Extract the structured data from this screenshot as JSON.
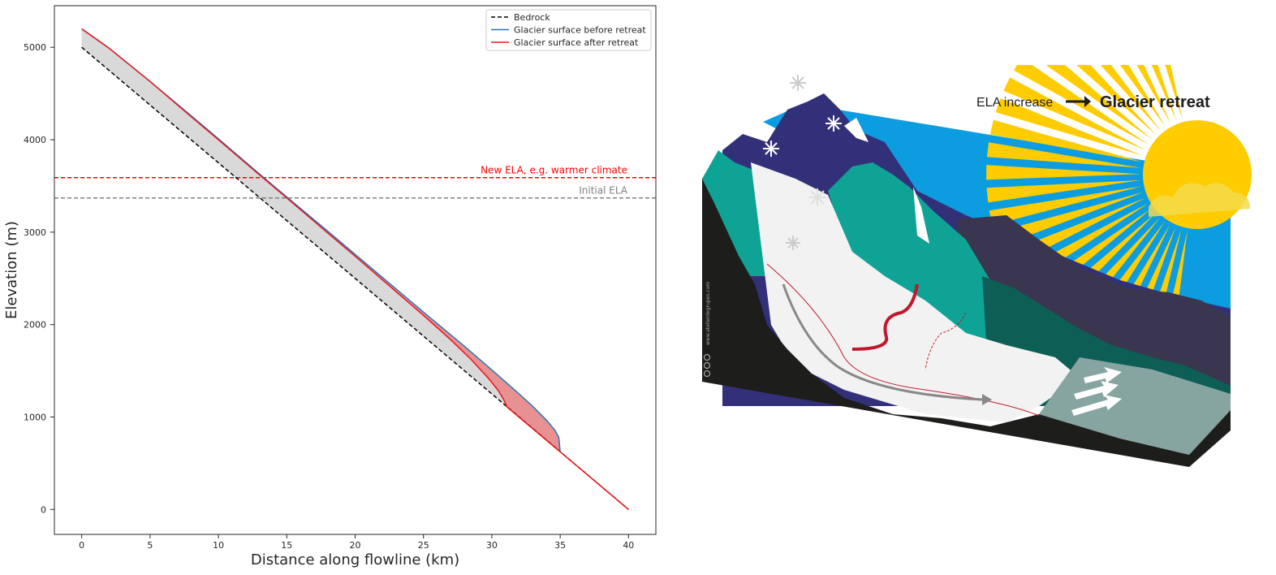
{
  "chart_data": {
    "type": "line",
    "xlabel": "Distance along flowline (km)",
    "ylabel": "Elevation (m)",
    "xlim": [
      -2,
      42
    ],
    "ylim": [
      -270,
      5450
    ],
    "xticks": [
      0,
      5,
      10,
      15,
      20,
      25,
      30,
      35,
      40
    ],
    "yticks": [
      0,
      1000,
      2000,
      3000,
      4000,
      5000
    ],
    "grid": false,
    "legend_position": "top-right",
    "series": [
      {
        "name": "Bedrock",
        "color": "#000000",
        "style": "dashed",
        "x": [
          0,
          40
        ],
        "y": [
          5000,
          0
        ]
      },
      {
        "name": "Glacier surface before retreat",
        "color": "#2a76b8",
        "style": "solid",
        "x": [
          0,
          2,
          5,
          8,
          10,
          13,
          15,
          18,
          20,
          23,
          25,
          28,
          30,
          32,
          33,
          34,
          34.6,
          34.9,
          35
        ],
        "y": [
          5200,
          4990,
          4630,
          4260,
          4010,
          3630,
          3380,
          3010,
          2760,
          2385,
          2135,
          1765,
          1510,
          1250,
          1115,
          965,
          860,
          780,
          625
        ]
      },
      {
        "name": "Glacier surface after retreat",
        "color": "#e8161b",
        "style": "solid",
        "x": [
          0,
          2,
          5,
          8,
          10,
          13,
          15,
          18,
          20,
          23,
          25,
          27,
          28.5,
          29.8,
          30.5,
          30.9,
          31.1,
          40
        ],
        "y": [
          5200,
          4990,
          4630,
          4250,
          4000,
          3620,
          3370,
          2990,
          2740,
          2355,
          2100,
          1835,
          1620,
          1410,
          1280,
          1180,
          1110,
          0
        ]
      }
    ],
    "ela_lines": [
      {
        "label": "New ELA, e.g. warmer climate",
        "y": 3590,
        "color": "#ff0000"
      },
      {
        "label": "Initial ELA",
        "y": 3370,
        "color": "#808080"
      }
    ],
    "fills": [
      {
        "between": [
          "Glacier surface after retreat",
          "Bedrock"
        ],
        "color": "#d9d9d9"
      },
      {
        "between": [
          "Glacier surface before retreat",
          "Glacier surface after retreat"
        ],
        "color": "#e79192"
      }
    ]
  },
  "illustration": {
    "label_left": "ELA increase",
    "label_right": "Glacier retreat",
    "credit": "www.atelierdegrupes.com",
    "colors": {
      "sky": "#0c9de0",
      "sun": "#ffcc00",
      "ground": "#1d1d1b",
      "glacier": "#f2f2f2",
      "teal": "#0fa396",
      "dark_teal": "#0d5e55",
      "navy": "#33307a",
      "slate": "#3a3650",
      "lake": "#86a5a0",
      "ela_line": "#c0182a",
      "flow_arrow": "#888888"
    }
  }
}
